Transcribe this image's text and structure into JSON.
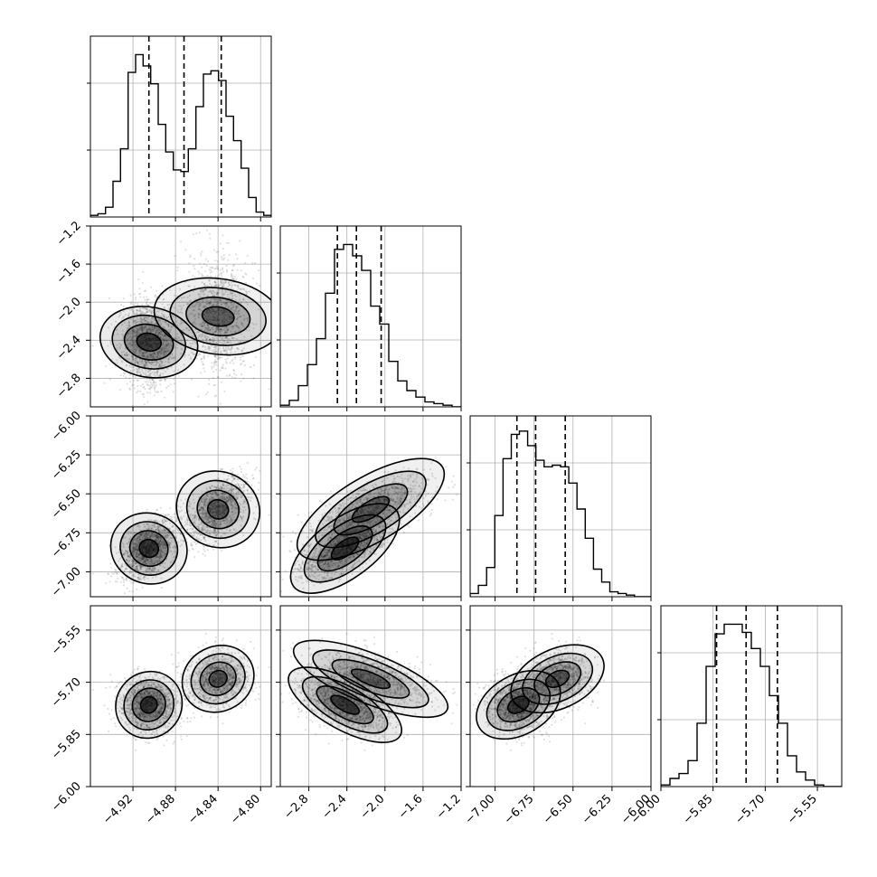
{
  "chart_data": {
    "type": "corner",
    "title": "",
    "grid": true,
    "parameters": [
      "",
      "",
      "",
      ""
    ],
    "ranges": [
      [
        -4.96,
        -4.79
      ],
      [
        -3.1,
        -1.2
      ],
      [
        -7.16,
        -6.0
      ],
      [
        -6.0,
        -5.48
      ]
    ],
    "x_ticks": [
      [
        "−4.92",
        "−4.88",
        "−4.84",
        "−4.80"
      ],
      [
        "−2.8",
        "−2.4",
        "−2.0",
        "−1.6",
        "−1.2"
      ],
      [
        "−7.00",
        "−6.75",
        "−6.50",
        "−6.25",
        "−6.00"
      ],
      [
        "−6.00",
        "−5.85",
        "−5.70",
        "−5.55"
      ]
    ],
    "x_tick_values": [
      [
        -4.92,
        -4.88,
        -4.84,
        -4.8
      ],
      [
        -2.8,
        -2.4,
        -2.0,
        -1.6,
        -1.2
      ],
      [
        -7.0,
        -6.75,
        -6.5,
        -6.25,
        -6.0
      ],
      [
        -6.0,
        -5.85,
        -5.7,
        -5.55
      ]
    ],
    "y_ticks": [
      [],
      [
        "−1.2",
        "−1.6",
        "−2.0",
        "−2.4",
        "−2.8"
      ],
      [
        "−6.00",
        "−6.25",
        "−6.50",
        "−6.75",
        "−7.00"
      ],
      [
        "−5.55",
        "−5.70",
        "−5.85",
        "−6.00"
      ]
    ],
    "y_tick_values": [
      [],
      [
        -1.2,
        -1.6,
        -2.0,
        -2.4,
        -2.8
      ],
      [
        -6.0,
        -6.25,
        -6.5,
        -6.75,
        -7.0
      ],
      [
        -5.55,
        -5.7,
        -5.85,
        -6.0
      ]
    ],
    "quantiles": [
      [
        -4.905,
        -4.872,
        -4.837
      ],
      [
        -2.5,
        -2.3,
        -2.04
      ],
      [
        -6.86,
        -6.74,
        -6.55
      ],
      [
        -5.84,
        -5.755,
        -5.665
      ]
    ],
    "histograms": [
      [
        0.01,
        0.02,
        0.06,
        0.22,
        0.42,
        0.89,
        1.0,
        0.93,
        0.82,
        0.57,
        0.4,
        0.29,
        0.28,
        0.42,
        0.68,
        0.88,
        0.9,
        0.84,
        0.62,
        0.47,
        0.3,
        0.12,
        0.03,
        0.01
      ],
      [
        0.01,
        0.04,
        0.13,
        0.26,
        0.42,
        0.7,
        0.97,
        1.0,
        0.93,
        0.84,
        0.62,
        0.51,
        0.28,
        0.16,
        0.1,
        0.06,
        0.03,
        0.02,
        0.01,
        0.0
      ],
      [
        0.02,
        0.07,
        0.18,
        0.5,
        0.85,
        1.0,
        1.02,
        0.93,
        0.84,
        0.8,
        0.81,
        0.8,
        0.7,
        0.54,
        0.36,
        0.17,
        0.09,
        0.03,
        0.02,
        0.01,
        0.0,
        0.0
      ],
      [
        0.01,
        0.05,
        0.08,
        0.16,
        0.39,
        0.74,
        0.94,
        1.0,
        1.0,
        0.95,
        0.85,
        0.74,
        0.56,
        0.39,
        0.19,
        0.09,
        0.04,
        0.01,
        0.0,
        0.0
      ]
    ],
    "correlations": {
      "1-0": 0.55,
      "2-0": 0.9,
      "2-1": 0.8,
      "3-0": 0.2,
      "3-1": -0.75,
      "3-2": 0.35
    },
    "two_mode_fraction_in_mode_b": 0.45,
    "mode_split_by_param0": -4.872,
    "colors": {
      "line": "#000000",
      "grid": "#b0b0b0",
      "density": "#000000"
    }
  }
}
